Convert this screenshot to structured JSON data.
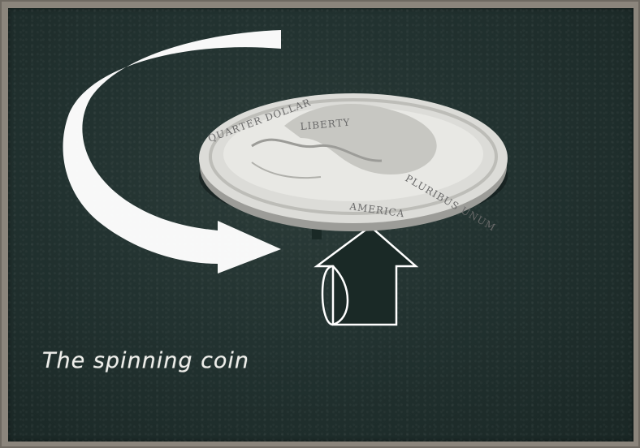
{
  "caption": "The spinning coin",
  "coin": {
    "top_legend": "QUARTER DOLLAR",
    "bottom_legend": "AMERICA",
    "motto": "LIBERTY",
    "side_legend": "PLURIBUS UNUM"
  },
  "colors": {
    "chalkboard": "#223230",
    "chalk": "#ffffff",
    "frame": "#8b857c",
    "coin": "#d9d9d6"
  },
  "icons": {
    "rotation_arrow": "curved-arrow-icon",
    "up_arrow": "up-arrow-icon"
  }
}
